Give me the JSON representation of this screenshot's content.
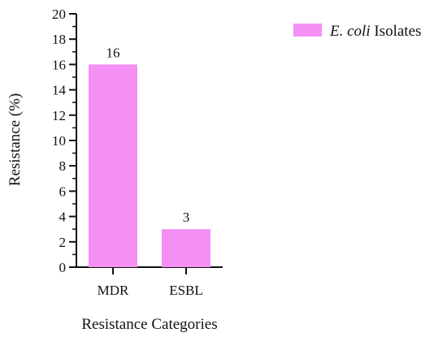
{
  "chart_data": {
    "type": "bar",
    "categories": [
      "MDR",
      "ESBL"
    ],
    "series": [
      {
        "name": "E. coli Isolates",
        "name_italic_part": "E. coli",
        "name_rest": " Isolates",
        "values": [
          16,
          3
        ],
        "color": "#f48ff4"
      }
    ],
    "data_labels": [
      "16",
      "3"
    ],
    "xlabel": "Resistance Categories",
    "ylabel": "Resistance (%)",
    "ylim": [
      0,
      20
    ],
    "y_major_ticks": [
      0,
      2,
      4,
      6,
      8,
      10,
      12,
      14,
      16,
      18,
      20
    ],
    "y_minor_step": 1,
    "grid": false,
    "legend_position": "top-right"
  }
}
